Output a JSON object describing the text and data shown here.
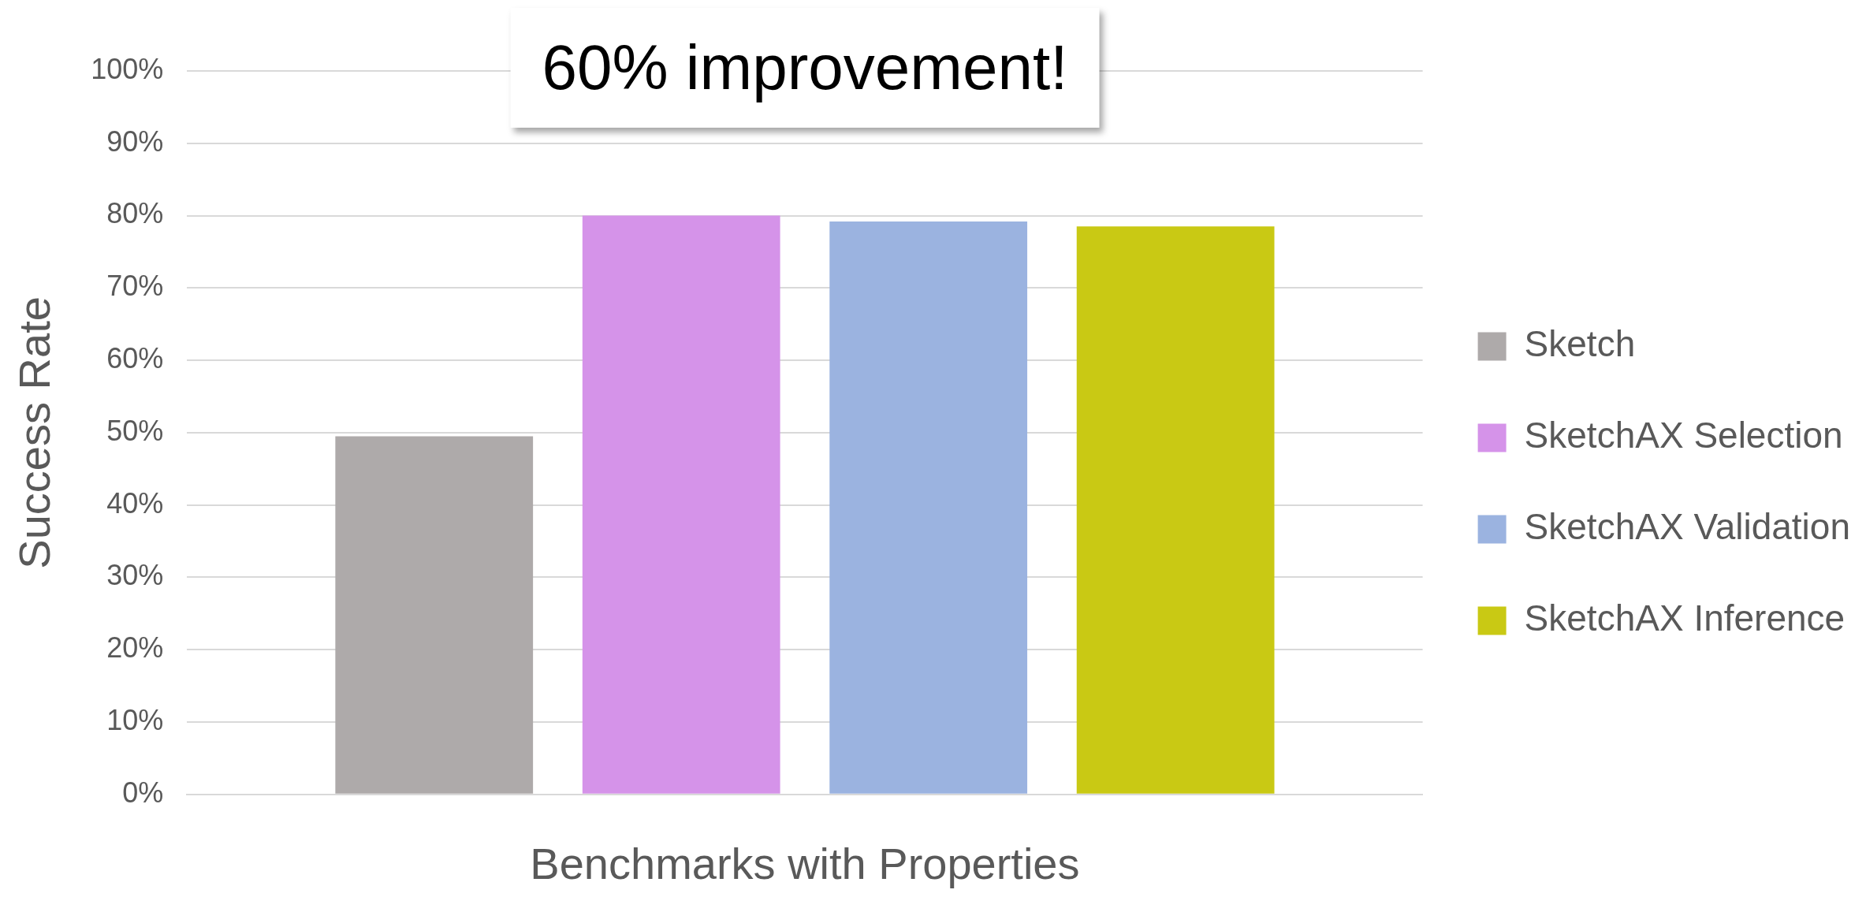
{
  "chart_data": {
    "type": "bar",
    "xlabel": "Benchmarks with Properties",
    "ylabel": "Success Rate",
    "categories": [
      null
    ],
    "series": [
      {
        "name": "Sketch",
        "color": "#aeaaaa",
        "values": [
          49.5
        ]
      },
      {
        "name": "SketchAX Selection",
        "color": "#d593e9",
        "values": [
          80
        ]
      },
      {
        "name": "SketchAX Validation",
        "color": "#9bb3e0",
        "values": [
          79.2
        ]
      },
      {
        "name": "SketchAX Inference",
        "color": "#c9c914",
        "values": [
          78.5
        ]
      }
    ],
    "ylim": [
      0,
      100
    ],
    "yticks": [
      {
        "value": 0,
        "label": "0%"
      },
      {
        "value": 10,
        "label": "10%"
      },
      {
        "value": 20,
        "label": "20%"
      },
      {
        "value": 30,
        "label": "30%"
      },
      {
        "value": 40,
        "label": "40%"
      },
      {
        "value": 50,
        "label": "50%"
      },
      {
        "value": 60,
        "label": "60%"
      },
      {
        "value": 70,
        "label": "70%"
      },
      {
        "value": 80,
        "label": "80%"
      },
      {
        "value": 90,
        "label": "90%"
      },
      {
        "value": 100,
        "label": "100%"
      }
    ],
    "grid": "y",
    "legend": "right",
    "annotations": [
      "60% improvement!"
    ]
  }
}
